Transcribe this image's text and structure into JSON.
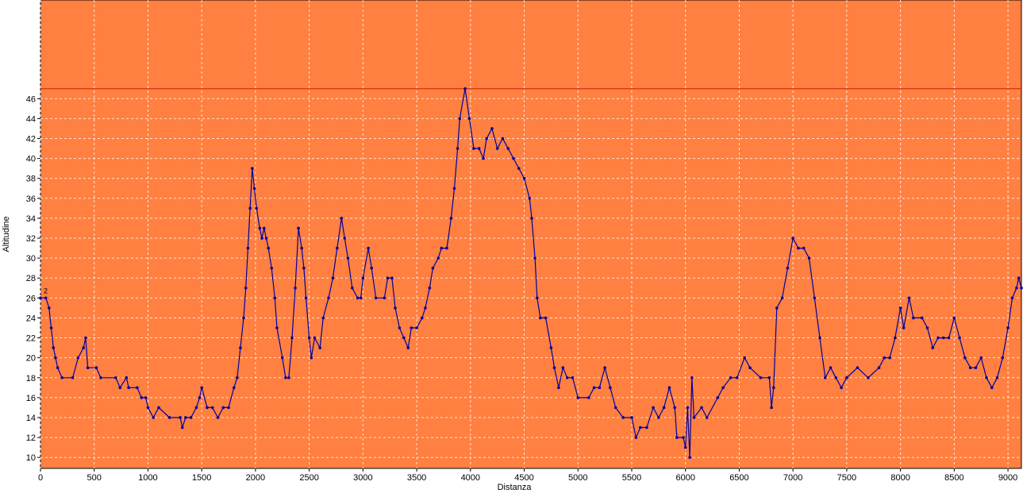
{
  "chart_data": {
    "type": "line",
    "x_label": "Distanza",
    "y_label": "Altitudine",
    "annotation": "2",
    "x": [
      0,
      50,
      80,
      100,
      120,
      140,
      160,
      200,
      300,
      350,
      400,
      420,
      440,
      520,
      560,
      700,
      740,
      800,
      820,
      900,
      940,
      980,
      1000,
      1050,
      1100,
      1200,
      1300,
      1320,
      1350,
      1400,
      1450,
      1480,
      1500,
      1550,
      1600,
      1650,
      1700,
      1750,
      1800,
      1830,
      1860,
      1890,
      1910,
      1930,
      1950,
      1970,
      1990,
      2010,
      2040,
      2060,
      2080,
      2100,
      2120,
      2150,
      2180,
      2200,
      2250,
      2280,
      2310,
      2340,
      2370,
      2400,
      2430,
      2450,
      2470,
      2500,
      2520,
      2550,
      2600,
      2630,
      2680,
      2720,
      2760,
      2800,
      2830,
      2860,
      2900,
      2950,
      2980,
      3000,
      3050,
      3080,
      3120,
      3200,
      3230,
      3270,
      3300,
      3340,
      3380,
      3420,
      3450,
      3500,
      3550,
      3580,
      3620,
      3650,
      3700,
      3730,
      3780,
      3820,
      3850,
      3880,
      3900,
      3950,
      3990,
      4030,
      4080,
      4120,
      4150,
      4200,
      4250,
      4300,
      4350,
      4400,
      4450,
      4500,
      4550,
      4570,
      4600,
      4620,
      4650,
      4700,
      4750,
      4780,
      4820,
      4860,
      4900,
      4950,
      5000,
      5100,
      5150,
      5200,
      5250,
      5300,
      5350,
      5420,
      5500,
      5540,
      5580,
      5640,
      5700,
      5750,
      5800,
      5850,
      5900,
      5920,
      5980,
      6000,
      6020,
      6040,
      6060,
      6080,
      6150,
      6200,
      6300,
      6350,
      6420,
      6480,
      6550,
      6600,
      6700,
      6780,
      6800,
      6820,
      6850,
      6900,
      6950,
      7000,
      7050,
      7100,
      7150,
      7200,
      7250,
      7300,
      7350,
      7400,
      7450,
      7500,
      7600,
      7700,
      7800,
      7850,
      7900,
      7950,
      8000,
      8030,
      8080,
      8120,
      8200,
      8250,
      8300,
      8350,
      8400,
      8450,
      8500,
      8550,
      8600,
      8650,
      8700,
      8750,
      8800,
      8850,
      8900,
      8950,
      9000,
      9040,
      9080,
      9100,
      9125
    ],
    "values": [
      26,
      26,
      25,
      23,
      21,
      20,
      19,
      18,
      18,
      20,
      21,
      22,
      19,
      19,
      18,
      18,
      17,
      18,
      17,
      17,
      16,
      16,
      15,
      14,
      15,
      14,
      14,
      13,
      14,
      14,
      15,
      16,
      17,
      15,
      15,
      14,
      15,
      15,
      17,
      18,
      21,
      24,
      27,
      31,
      35,
      39,
      37,
      35,
      33,
      32,
      33,
      32,
      31,
      29,
      26,
      23,
      20,
      18,
      18,
      22,
      27,
      33,
      31,
      29,
      26,
      22,
      20,
      22,
      21,
      24,
      26,
      28,
      31,
      34,
      32,
      30,
      27,
      26,
      26,
      28,
      31,
      29,
      26,
      26,
      28,
      28,
      25,
      23,
      22,
      21,
      23,
      23,
      24,
      25,
      27,
      29,
      30,
      31,
      31,
      34,
      37,
      41,
      44,
      47,
      44,
      41,
      41,
      40,
      42,
      43,
      41,
      42,
      41,
      40,
      39,
      38,
      36,
      34,
      30,
      26,
      24,
      24,
      21,
      19,
      17,
      19,
      18,
      18,
      16,
      16,
      17,
      17,
      19,
      17,
      15,
      14,
      14,
      12,
      13,
      13,
      15,
      14,
      15,
      17,
      15,
      12,
      12,
      11,
      15,
      10,
      18,
      14,
      15,
      14,
      16,
      17,
      18,
      18,
      20,
      19,
      18,
      18,
      15,
      17,
      25,
      26,
      29,
      32,
      31,
      31,
      30,
      26,
      22,
      18,
      19,
      18,
      17,
      18,
      19,
      18,
      19,
      20,
      20,
      22,
      25,
      23,
      26,
      24,
      24,
      23,
      21,
      22,
      22,
      22,
      24,
      22,
      20,
      19,
      19,
      20,
      18,
      17,
      18,
      20,
      23,
      26,
      27,
      28,
      27
    ],
    "color": "#0000a0",
    "max_line_color": "#d02000",
    "background": "#ff8040",
    "xlim": [
      0,
      9125
    ],
    "ylim": [
      8.9,
      55.9
    ],
    "xticks": [
      0,
      500,
      1000,
      1500,
      2000,
      2500,
      3000,
      3500,
      4000,
      4500,
      5000,
      5500,
      6000,
      6500,
      7000,
      7500,
      8000,
      8500,
      9000
    ],
    "yticks": [
      10,
      12,
      14,
      16,
      18,
      20,
      22,
      24,
      26,
      28,
      30,
      32,
      34,
      36,
      38,
      40,
      42,
      44,
      46
    ],
    "grid": true
  }
}
